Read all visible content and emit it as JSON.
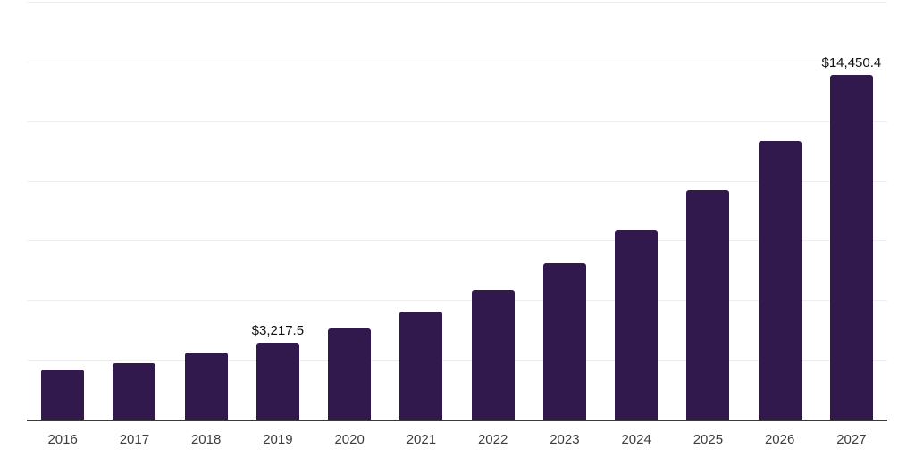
{
  "chart_data": {
    "type": "bar",
    "title": "",
    "xlabel": "",
    "ylabel": "",
    "categories": [
      "2016",
      "2017",
      "2018",
      "2019",
      "2020",
      "2021",
      "2022",
      "2023",
      "2024",
      "2025",
      "2026",
      "2027"
    ],
    "values": [
      2080,
      2365,
      2790,
      3217.5,
      3810,
      4510,
      5440,
      6560,
      7940,
      9620,
      11675,
      14450.4
    ],
    "data_labels": {
      "2019": "$3,217.5",
      "2027": "$14,450.4"
    },
    "ylim": [
      0,
      17500
    ],
    "gridline_interval": 2500,
    "grid": "horizontal-only",
    "legend": "none",
    "y_axis_tick_labels": "none",
    "bar_color": "#31184d",
    "gridline_color": "#efefef",
    "axis_color": "#3a3a3a",
    "label_color": "#111111",
    "tick_label_color": "#3d3d3d"
  }
}
